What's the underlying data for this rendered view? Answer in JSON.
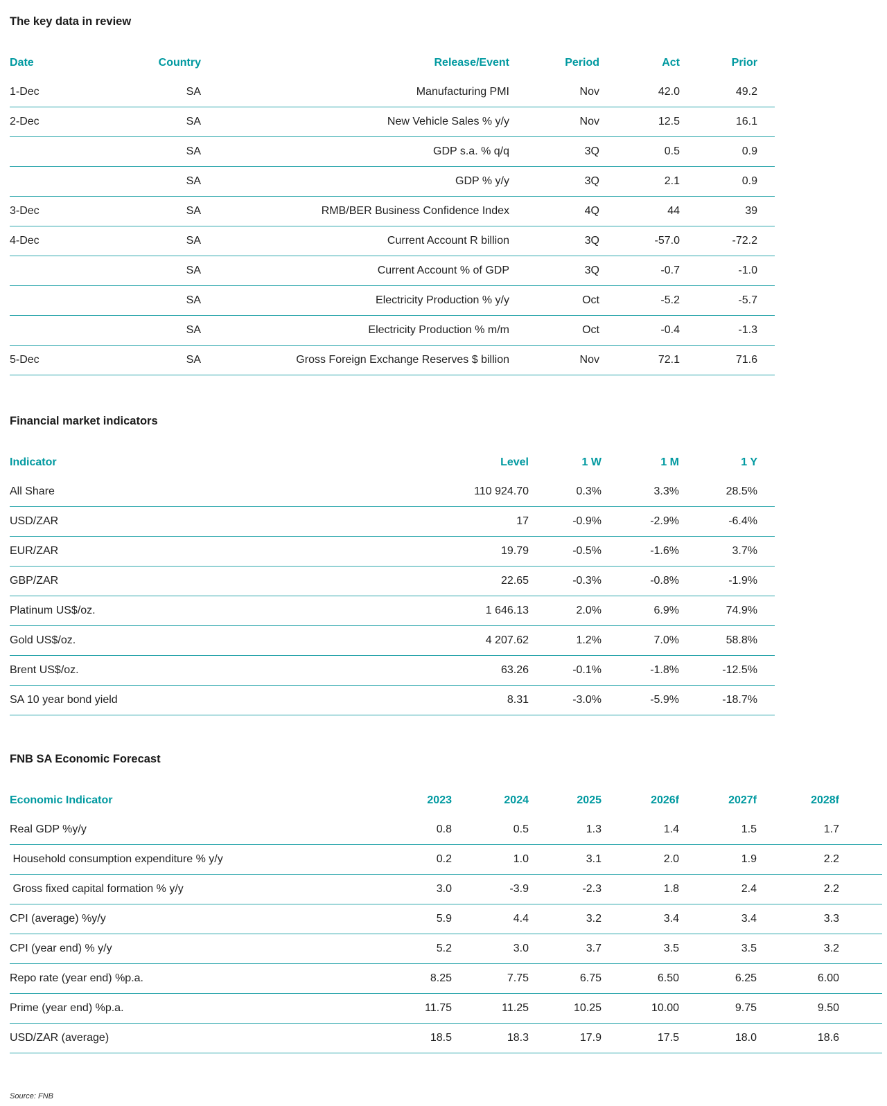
{
  "colors": {
    "accent_teal": "#0099A0",
    "row_line_teal": "#2BA6AC",
    "body_text": "#1F1F1F"
  },
  "source_note": "Source: FNB",
  "tables": [
    {
      "title": "The key data in review",
      "columns": [
        "Date",
        "Country",
        "Release/Event",
        "Period",
        "Act",
        "Prior"
      ],
      "rows": [
        [
          "1-Dec",
          "SA",
          "Manufacturing PMI",
          "Nov",
          "42.0",
          "49.2"
        ],
        [
          "2-Dec",
          "SA",
          "New Vehicle Sales % y/y",
          "Nov",
          "12.5",
          "16.1"
        ],
        [
          "",
          "SA",
          "GDP s.a. % q/q",
          "3Q",
          "0.5",
          "0.9"
        ],
        [
          "",
          "SA",
          "GDP % y/y",
          "3Q",
          "2.1",
          "0.9"
        ],
        [
          "3-Dec",
          "SA",
          "RMB/BER Business Confidence Index",
          "4Q",
          "44",
          "39"
        ],
        [
          "4-Dec",
          "SA",
          "Current Account R billion",
          "3Q",
          "-57.0",
          "-72.2"
        ],
        [
          "",
          "SA",
          "Current Account % of GDP",
          "3Q",
          "-0.7",
          "-1.0"
        ],
        [
          "",
          "SA",
          "Electricity Production % y/y",
          "Oct",
          "-5.2",
          "-5.7"
        ],
        [
          "",
          "SA",
          "Electricity Production % m/m",
          "Oct",
          "-0.4",
          "-1.3"
        ],
        [
          "5-Dec",
          "SA",
          "Gross Foreign Exchange Reserves $ billion",
          "Nov",
          "72.1",
          "71.6"
        ]
      ]
    },
    {
      "title": "Financial market indicators",
      "columns": [
        "Indicator",
        "Level",
        "1 W",
        "1 M",
        "1 Y"
      ],
      "rows": [
        [
          "All Share",
          "110 924.70",
          "0.3%",
          "3.3%",
          "28.5%"
        ],
        [
          "USD/ZAR",
          "17",
          "-0.9%",
          "-2.9%",
          "-6.4%"
        ],
        [
          "EUR/ZAR",
          "19.79",
          "-0.5%",
          "-1.6%",
          "3.7%"
        ],
        [
          "GBP/ZAR",
          "22.65",
          "-0.3%",
          "-0.8%",
          "-1.9%"
        ],
        [
          "Platinum US$/oz.",
          "1 646.13",
          "2.0%",
          "6.9%",
          "74.9%"
        ],
        [
          "Gold US$/oz.",
          "4 207.62",
          "1.2%",
          "7.0%",
          "58.8%"
        ],
        [
          "Brent US$/oz.",
          "63.26",
          "-0.1%",
          "-1.8%",
          "-12.5%"
        ],
        [
          "SA 10 year bond yield",
          "8.31",
          "-3.0%",
          "-5.9%",
          "-18.7%"
        ]
      ]
    },
    {
      "title": "FNB SA Economic Forecast",
      "columns": [
        "Economic Indicator",
        "2023",
        "2024",
        "2025",
        "2026f",
        "2027f",
        "2028f"
      ],
      "rows": [
        [
          "Real GDP %y/y",
          "0.8",
          "0.5",
          "1.3",
          "1.4",
          "1.5",
          "1.7"
        ],
        [
          " Household consumption expenditure % y/y",
          "0.2",
          "1.0",
          "3.1",
          "2.0",
          "1.9",
          "2.2"
        ],
        [
          " Gross fixed capital formation % y/y",
          "3.0",
          "-3.9",
          "-2.3",
          "1.8",
          "2.4",
          "2.2"
        ],
        [
          "CPI (average) %y/y",
          "5.9",
          "4.4",
          "3.2",
          "3.4",
          "3.4",
          "3.3"
        ],
        [
          "CPI (year end) % y/y",
          "5.2",
          "3.0",
          "3.7",
          "3.5",
          "3.5",
          "3.2"
        ],
        [
          "Repo rate (year end) %p.a.",
          "8.25",
          "7.75",
          "6.75",
          "6.50",
          "6.25",
          "6.00"
        ],
        [
          "Prime (year end) %p.a.",
          "11.75",
          "11.25",
          "10.25",
          "10.00",
          "9.75",
          "9.50"
        ],
        [
          "USD/ZAR (average)",
          "18.5",
          "18.3",
          "17.9",
          "17.5",
          "18.0",
          "18.6"
        ]
      ]
    }
  ]
}
